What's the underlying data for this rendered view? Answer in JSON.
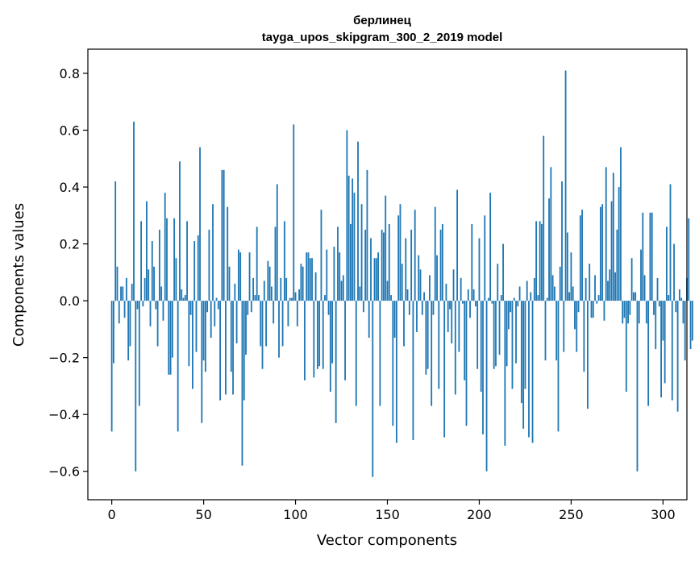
{
  "chart_data": {
    "type": "bar",
    "title_line1": "берлинец",
    "title_line2": "tayga_upos_skipgram_300_2_2019 model",
    "xlabel": "Vector components",
    "ylabel": "Components values",
    "xlim": [
      -13,
      313
    ],
    "ylim": [
      -0.7,
      0.885
    ],
    "xticks": [
      0,
      50,
      100,
      150,
      200,
      250,
      300
    ],
    "xtick_labels": [
      "0",
      "50",
      "100",
      "150",
      "200",
      "250",
      "300"
    ],
    "yticks": [
      -0.6,
      -0.4,
      -0.2,
      0.0,
      0.2,
      0.4,
      0.6,
      0.8
    ],
    "ytick_labels": [
      "−0.6",
      "−0.4",
      "−0.2",
      "0.0",
      "0.2",
      "0.4",
      "0.6",
      "0.8"
    ],
    "bar_color": "#1f77b4",
    "values": [
      -0.46,
      -0.22,
      0.42,
      0.12,
      -0.08,
      0.05,
      0.05,
      -0.06,
      0.08,
      -0.21,
      -0.16,
      0.06,
      0.63,
      -0.6,
      -0.03,
      -0.37,
      0.28,
      -0.02,
      0.08,
      0.35,
      0.11,
      -0.09,
      0.21,
      0.12,
      -0.03,
      -0.16,
      0.25,
      0.05,
      -0.07,
      0.38,
      0.29,
      -0.26,
      -0.26,
      -0.2,
      0.29,
      0.15,
      -0.46,
      0.49,
      0.04,
      0.01,
      0.02,
      0.28,
      -0.23,
      -0.05,
      -0.31,
      0.21,
      -0.18,
      0.23,
      0.54,
      -0.43,
      -0.21,
      -0.25,
      -0.04,
      0.25,
      -0.13,
      0.34,
      -0.09,
      0.01,
      -0.03,
      -0.35,
      0.46,
      0.46,
      -0.33,
      0.33,
      0.12,
      -0.25,
      -0.33,
      0.06,
      -0.15,
      0.18,
      0.17,
      -0.58,
      -0.35,
      -0.19,
      -0.05,
      0.17,
      -0.04,
      0.08,
      0.02,
      0.26,
      0.02,
      -0.16,
      -0.24,
      0.07,
      -0.16,
      0.14,
      0.12,
      0.05,
      -0.08,
      0.26,
      0.41,
      -0.2,
      0.08,
      -0.16,
      0.28,
      0.08,
      -0.09,
      0.01,
      0.01,
      0.62,
      0.03,
      -0.09,
      0.04,
      0.13,
      0.12,
      -0.28,
      0.17,
      0.17,
      0.15,
      0.15,
      -0.27,
      0.1,
      -0.24,
      -0.23,
      0.32,
      -0.24,
      0.02,
      0.18,
      -0.05,
      -0.32,
      -0.22,
      0.19,
      -0.43,
      0.26,
      0.17,
      0.07,
      0.09,
      -0.28,
      0.6,
      0.44,
      0.27,
      0.43,
      0.38,
      -0.37,
      0.56,
      0.05,
      0.34,
      -0.04,
      0.25,
      0.46,
      -0.13,
      0.22,
      -0.62,
      0.15,
      0.15,
      0.17,
      -0.37,
      0.25,
      0.24,
      0.37,
      0.07,
      0.27,
      0.02,
      -0.44,
      -0.13,
      -0.5,
      0.3,
      0.34,
      0.13,
      -0.16,
      0.22,
      0.04,
      -0.05,
      0.25,
      -0.49,
      0.32,
      -0.11,
      0.16,
      0.11,
      -0.05,
      0.03,
      -0.26,
      -0.24,
      0.09,
      -0.37,
      -0.05,
      0.33,
      0.16,
      -0.31,
      0.25,
      0.27,
      -0.48,
      0.06,
      -0.11,
      -0.03,
      -0.15,
      0.11,
      -0.33,
      0.39,
      -0.18,
      0.08,
      -0.01,
      -0.28,
      -0.44,
      0.04,
      -0.06,
      0.27,
      0.04,
      -0.02,
      -0.24,
      0.22,
      -0.32,
      -0.47,
      0.3,
      -0.6,
      0.01,
      0.38,
      -0.01,
      -0.24,
      -0.23,
      0.13,
      -0.19,
      0.02,
      0.2,
      -0.51,
      -0.23,
      -0.1,
      -0.04,
      -0.31,
      0.01,
      -0.22,
      -0.02,
      0.05,
      -0.36,
      -0.45,
      -0.31,
      0.07,
      -0.48,
      0.03,
      -0.5,
      0.08,
      0.28,
      0.02,
      0.28,
      0.27,
      0.58,
      -0.21,
      0.01,
      0.36,
      0.47,
      0.09,
      0.05,
      -0.21,
      -0.46,
      0.12,
      0.42,
      -0.18,
      0.81,
      0.24,
      0.03,
      0.17,
      0.05,
      -0.1,
      -0.18,
      -0.04,
      0.3,
      0.32,
      -0.25,
      0.08,
      -0.38,
      0.13,
      -0.06,
      -0.06,
      0.09,
      -0.01,
      0.02,
      0.33,
      0.34,
      -0.07,
      0.47,
      0.07,
      0.11,
      0.35,
      0.45,
      0.1,
      0.25,
      0.4,
      0.54,
      -0.08,
      -0.06,
      -0.32,
      -0.08,
      -0.05,
      0.15,
      0.03,
      0.03,
      -0.6,
      -0.08,
      0.18,
      0.31,
      0.09,
      -0.08,
      -0.37,
      0.31,
      0.31,
      -0.05,
      -0.17,
      0.08,
      -0.02,
      -0.34,
      -0.14,
      -0.29,
      0.26,
      0.02,
      0.41,
      -0.35,
      0.2,
      -0.04,
      -0.39,
      0.04,
      0.01,
      -0.08,
      -0.21,
      0.08,
      0.29,
      -0.17,
      -0.14
    ]
  }
}
